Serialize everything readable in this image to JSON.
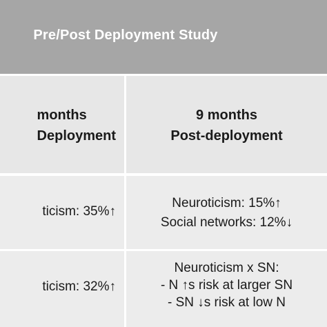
{
  "table": {
    "title": "Pre/Post Deployment Study",
    "headers": {
      "left": [
        "months",
        "Deployment"
      ],
      "right": [
        "9 months",
        "Post-deployment"
      ]
    },
    "rows": [
      {
        "left": [
          "ticism: 35%↑"
        ],
        "right": [
          "Neuroticism: 15%↑",
          "Social networks: 12%↓"
        ]
      },
      {
        "left": [
          "ticism: 32%↑"
        ],
        "right": [
          "Neuroticism x SN:",
          "- N ↑s risk at larger SN",
          "- SN ↓s risk at low N"
        ]
      }
    ]
  },
  "colors": {
    "title_band": "#a6a6a6",
    "header_band": "#e7e7e7",
    "row_band": "#ececec",
    "separator": "#ffffff",
    "text": "#1a1a1a"
  }
}
